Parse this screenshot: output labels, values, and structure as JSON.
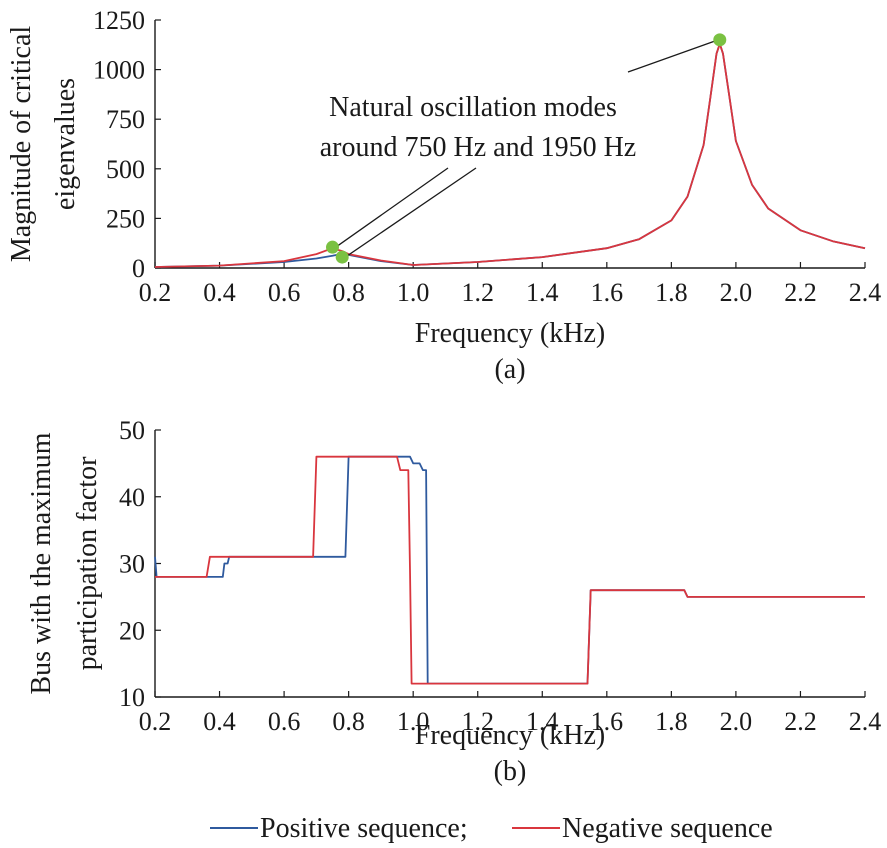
{
  "colors": {
    "positive": "#2f5a9e",
    "negative": "#d9363e",
    "marker": "#7ac142",
    "axis": "#1a1a1a"
  },
  "legend": {
    "positive": "Positive sequence;",
    "negative": "Negative sequence"
  },
  "chart_data": [
    {
      "type": "line",
      "panel_label": "(a)",
      "xlabel": "Frequency (kHz)",
      "ylabel_lines": [
        "Magnitude of critical",
        "eigenvalues"
      ],
      "xlim": [
        0.2,
        2.4
      ],
      "ylim": [
        0,
        1250
      ],
      "xticks": [
        "0.2",
        "0.4",
        "0.6",
        "0.8",
        "1.0",
        "1.2",
        "1.4",
        "1.6",
        "1.8",
        "2.0",
        "2.2",
        "2.4"
      ],
      "yticks": [
        "0",
        "250",
        "500",
        "750",
        "1000",
        "1250"
      ],
      "annotation_lines": [
        "Natural oscillation modes",
        "around 750 Hz and 1950 Hz"
      ],
      "series": [
        {
          "name": "Positive sequence",
          "x": [
            0.2,
            0.4,
            0.6,
            0.7,
            0.75,
            0.78,
            0.8,
            0.9,
            1.0,
            1.2,
            1.4,
            1.6,
            1.7,
            1.8,
            1.85,
            1.9,
            1.92,
            1.94,
            1.95,
            1.96,
            1.98,
            2.0,
            2.05,
            2.1,
            2.2,
            2.3,
            2.4
          ],
          "y": [
            5,
            12,
            30,
            48,
            62,
            72,
            66,
            35,
            15,
            30,
            55,
            100,
            145,
            240,
            360,
            620,
            850,
            1080,
            1130,
            1080,
            860,
            640,
            420,
            300,
            190,
            135,
            100
          ]
        },
        {
          "name": "Negative sequence",
          "x": [
            0.2,
            0.4,
            0.6,
            0.7,
            0.75,
            0.78,
            0.8,
            0.9,
            1.0,
            1.2,
            1.4,
            1.6,
            1.7,
            1.8,
            1.85,
            1.9,
            1.92,
            1.94,
            1.95,
            1.96,
            1.98,
            2.0,
            2.05,
            2.1,
            2.2,
            2.3,
            2.4
          ],
          "y": [
            5,
            12,
            35,
            70,
            100,
            85,
            70,
            38,
            15,
            30,
            55,
            100,
            145,
            240,
            360,
            620,
            850,
            1080,
            1130,
            1080,
            860,
            640,
            420,
            300,
            190,
            135,
            100
          ]
        }
      ],
      "markers": [
        {
          "x": 0.75,
          "y": 105
        },
        {
          "x": 0.78,
          "y": 55
        },
        {
          "x": 1.95,
          "y": 1150
        }
      ]
    },
    {
      "type": "line",
      "panel_label": "(b)",
      "xlabel": "Frequency (kHz)",
      "ylabel_lines": [
        "Bus with the maximum",
        "participation factor"
      ],
      "xlim": [
        0.2,
        2.4
      ],
      "ylim": [
        10,
        50
      ],
      "xticks": [
        "0.2",
        "0.4",
        "0.6",
        "0.8",
        "1.0",
        "1.2",
        "1.4",
        "1.6",
        "1.8",
        "2.0",
        "2.2",
        "2.4"
      ],
      "yticks": [
        "10",
        "20",
        "30",
        "40",
        "50"
      ],
      "series": [
        {
          "name": "Positive sequence",
          "x": [
            0.2,
            0.205,
            0.41,
            0.415,
            0.425,
            0.43,
            0.44,
            0.445,
            0.79,
            0.8,
            0.96,
            0.97,
            0.99,
            1.0,
            1.02,
            1.03,
            1.04,
            1.045,
            1.54,
            1.55,
            1.84,
            1.85,
            2.4
          ],
          "y": [
            31,
            28,
            28,
            30,
            30,
            31,
            31,
            31,
            31,
            46,
            46,
            46,
            46,
            45,
            45,
            44,
            44,
            12,
            12,
            26,
            26,
            25,
            25
          ]
        },
        {
          "name": "Negative sequence",
          "x": [
            0.2,
            0.36,
            0.37,
            0.69,
            0.7,
            0.95,
            0.96,
            0.985,
            0.99,
            0.995,
            1.54,
            1.55,
            1.84,
            1.85,
            2.4
          ],
          "y": [
            28,
            28,
            31,
            31,
            46,
            46,
            44,
            44,
            29,
            12,
            12,
            26,
            26,
            25,
            25
          ]
        }
      ]
    }
  ]
}
